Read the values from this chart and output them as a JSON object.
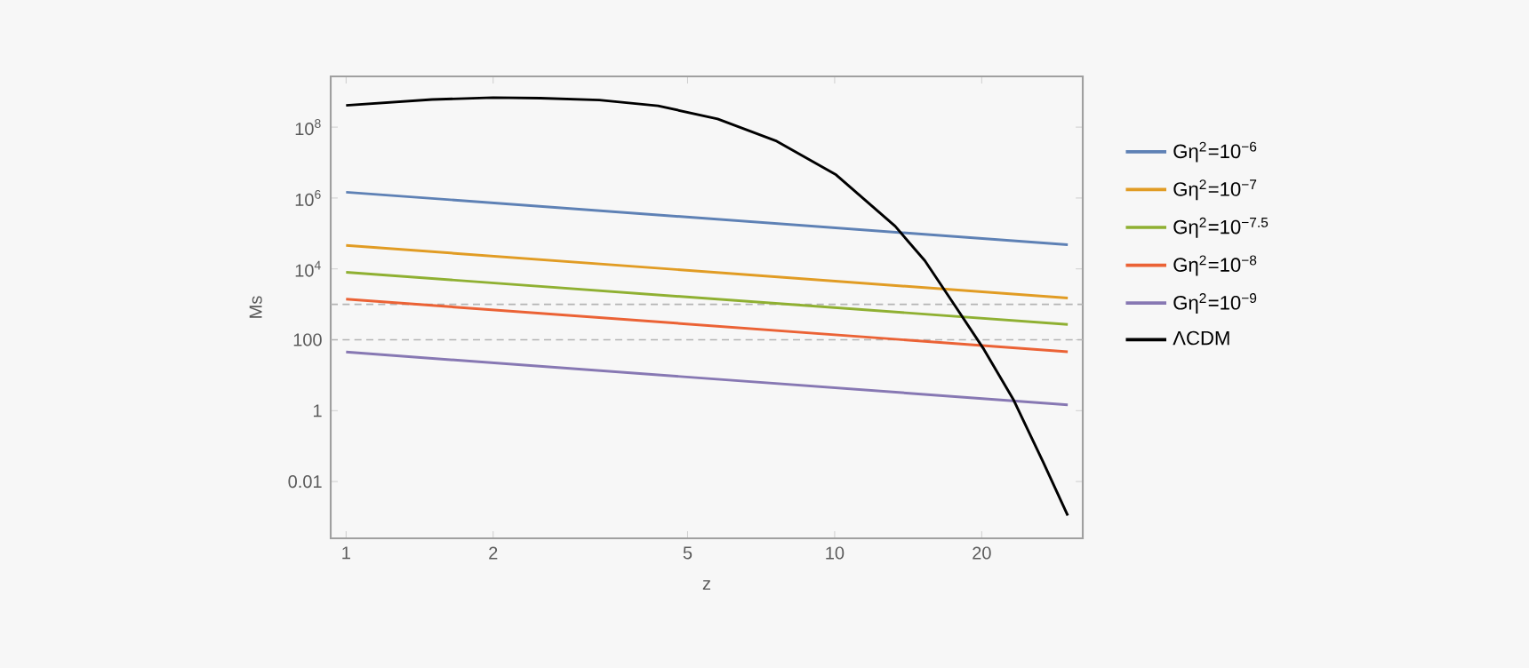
{
  "chart_data": {
    "type": "line",
    "xlabel": "z",
    "ylabel": "Ms",
    "log": "xy",
    "legend": "right",
    "xlim": [
      0.93,
      32.2
    ],
    "ylim": [
      0.00025,
      2700000000.0
    ],
    "xticks": [
      1,
      2,
      5,
      10,
      20
    ],
    "yticks": [
      0.01,
      1,
      100,
      {
        "value": 10000,
        "label": "10$^{4}$"
      },
      {
        "value": 1000000,
        "label": "10$^{6}$"
      },
      {
        "value": 100000000,
        "label": "10$^{8}$"
      }
    ],
    "ref_lines": [
      {
        "axis": "y",
        "value": 1000,
        "color": "#b4b4b4",
        "line_style": "dashed"
      },
      {
        "axis": "y",
        "value": 100,
        "color": "#b4b4b4",
        "line_style": "dashed"
      }
    ],
    "series": [
      {
        "name": "Gη$^{2}$=10$^{−6}$",
        "color": "#5e81b5",
        "x": [
          1,
          30
        ],
        "values": [
          1460000,
          48000
        ]
      },
      {
        "name": "Gη$^{2}$=10$^{−7}$",
        "color": "#e19c24",
        "x": [
          1,
          30
        ],
        "values": [
          46000,
          1500
        ]
      },
      {
        "name": "Gη$^{2}$=10$^{−7.5}$",
        "color": "#8fb032",
        "x": [
          1,
          30
        ],
        "values": [
          8000,
          270
        ]
      },
      {
        "name": "Gη$^{2}$=10$^{−8}$",
        "color": "#eb6235",
        "x": [
          1,
          30
        ],
        "values": [
          1400,
          46
        ]
      },
      {
        "name": "Gη$^{2}$=10$^{−9}$",
        "color": "#8778b3",
        "x": [
          1,
          30
        ],
        "values": [
          45,
          1.46
        ]
      },
      {
        "name": "ΛCDM",
        "color": "#000000",
        "x": [
          1,
          1.5,
          2,
          2.5,
          3.3,
          4.35,
          5.76,
          7.61,
          10.07,
          13.3,
          15.3,
          17.6,
          20.2,
          23.2,
          26.7,
          30
        ],
        "values": [
          410000000,
          600000000,
          680000000,
          660000000,
          580000000,
          400000000,
          170000000,
          40000000,
          4500000,
          160000,
          17000,
          950,
          54,
          2.1,
          0.036,
          0.0011
        ]
      }
    ]
  }
}
